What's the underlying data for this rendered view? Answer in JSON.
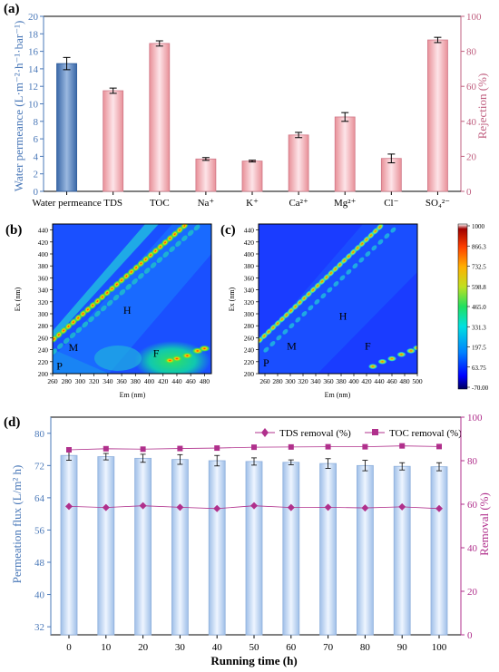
{
  "panels": {
    "a": "(a)",
    "b": "(b)",
    "c": "(c)",
    "d": "(d)"
  },
  "colors": {
    "blue": "#4a78b8",
    "pink": "#c06080",
    "barA_blue": "#5d86c0",
    "barA_pink": "#f0b0b8",
    "barD": "#c8dcf4",
    "magenta": "#b0308c"
  },
  "chart_data": [
    {
      "id": "a",
      "type": "bar",
      "categories": [
        "Water permeance",
        "TDS",
        "TOC",
        "Na⁺",
        "K⁺",
        "Ca²⁺",
        "Mg²⁺",
        "Cl⁻",
        "SO₄²⁻"
      ],
      "ylabel": "Water permeance (L·m⁻²·h⁻¹·bar⁻¹)",
      "y2label": "Rejection (%)",
      "ylim": [
        0,
        20
      ],
      "y2lim": [
        0,
        100
      ],
      "yticks": [
        0,
        2,
        4,
        6,
        8,
        10,
        12,
        14,
        16,
        18,
        20
      ],
      "y2ticks": [
        0,
        20,
        40,
        60,
        80,
        100
      ],
      "series": [
        {
          "values": [
            14.6,
            null,
            null,
            null,
            null,
            null,
            null,
            null,
            null
          ],
          "err": [
            0.7,
            null,
            null,
            null,
            null,
            null,
            null,
            null,
            null
          ],
          "axis": "left"
        },
        {
          "values": [
            null,
            57.5,
            84.5,
            18.5,
            17.3,
            32.2,
            42.5,
            18.8,
            86.5
          ],
          "err": [
            null,
            1.5,
            1.5,
            0.8,
            0.5,
            1.5,
            2.5,
            2.5,
            1.5
          ],
          "axis": "right"
        }
      ]
    },
    {
      "id": "b",
      "type": "heatmap",
      "xlabel": "Em (nm)",
      "ylabel": "Ex (nm)",
      "xticks": [
        260,
        280,
        300,
        320,
        340,
        360,
        380,
        400,
        420,
        440,
        460,
        480
      ],
      "yticks": [
        200,
        220,
        240,
        260,
        280,
        300,
        320,
        340,
        360,
        380,
        400,
        420,
        440
      ],
      "xlim": [
        260,
        490
      ],
      "ylim": [
        200,
        450
      ],
      "regions": [
        {
          "label": "P",
          "x": 270,
          "y": 207
        },
        {
          "label": "M",
          "x": 290,
          "y": 238
        },
        {
          "label": "H",
          "x": 368,
          "y": 300
        },
        {
          "label": "F",
          "x": 410,
          "y": 228
        }
      ]
    },
    {
      "id": "c",
      "type": "heatmap",
      "xlabel": "Em (nm)",
      "ylabel": "Ex (nm)",
      "xticks": [
        260,
        280,
        300,
        320,
        340,
        360,
        380,
        400,
        420,
        440,
        460,
        480,
        500
      ],
      "yticks": [
        200,
        220,
        240,
        260,
        280,
        300,
        320,
        340,
        360,
        380,
        400,
        420,
        440
      ],
      "xlim": [
        250,
        500
      ],
      "ylim": [
        200,
        450
      ],
      "regions": [
        {
          "label": "P",
          "x": 262,
          "y": 212
        },
        {
          "label": "M",
          "x": 302,
          "y": 240
        },
        {
          "label": "H",
          "x": 383,
          "y": 290
        },
        {
          "label": "F",
          "x": 422,
          "y": 240
        }
      ],
      "colorbar": {
        "ticks": [
          "1000",
          "866.3",
          "732.5",
          "598.8",
          "465.0",
          "331.3",
          "197.5",
          "63.75",
          "-70.00"
        ]
      }
    },
    {
      "id": "d",
      "type": "bar",
      "xlabel": "Running time (h)",
      "ylabel": "Permeation flux (L/m² h)",
      "y2label": "Removal (%)",
      "x": [
        0,
        10,
        20,
        30,
        40,
        50,
        60,
        70,
        80,
        90,
        100
      ],
      "ylim": [
        30,
        84
      ],
      "y2lim": [
        0,
        100
      ],
      "yticks": [
        32,
        40,
        48,
        56,
        64,
        72,
        80
      ],
      "y2ticks": [
        0,
        20,
        40,
        60,
        80,
        100
      ],
      "flux": [
        74.5,
        74.2,
        73.8,
        73.5,
        73.2,
        73.0,
        72.8,
        72.5,
        72.0,
        71.8,
        71.7
      ],
      "flux_err": [
        1.2,
        0.8,
        1.0,
        1.2,
        1.3,
        0.9,
        0.6,
        1.2,
        1.3,
        0.9,
        1.0
      ],
      "series": [
        {
          "name": "TDS removal (%)",
          "values": [
            59,
            58.5,
            59.3,
            58.6,
            58,
            59.3,
            58.5,
            58.6,
            58.3,
            58.8,
            58
          ]
        },
        {
          "name": "TOC removal (%)",
          "values": [
            85,
            85.5,
            85.3,
            85.6,
            85.8,
            86.2,
            86.3,
            86.4,
            86.4,
            86.8,
            86.5
          ]
        }
      ]
    }
  ]
}
